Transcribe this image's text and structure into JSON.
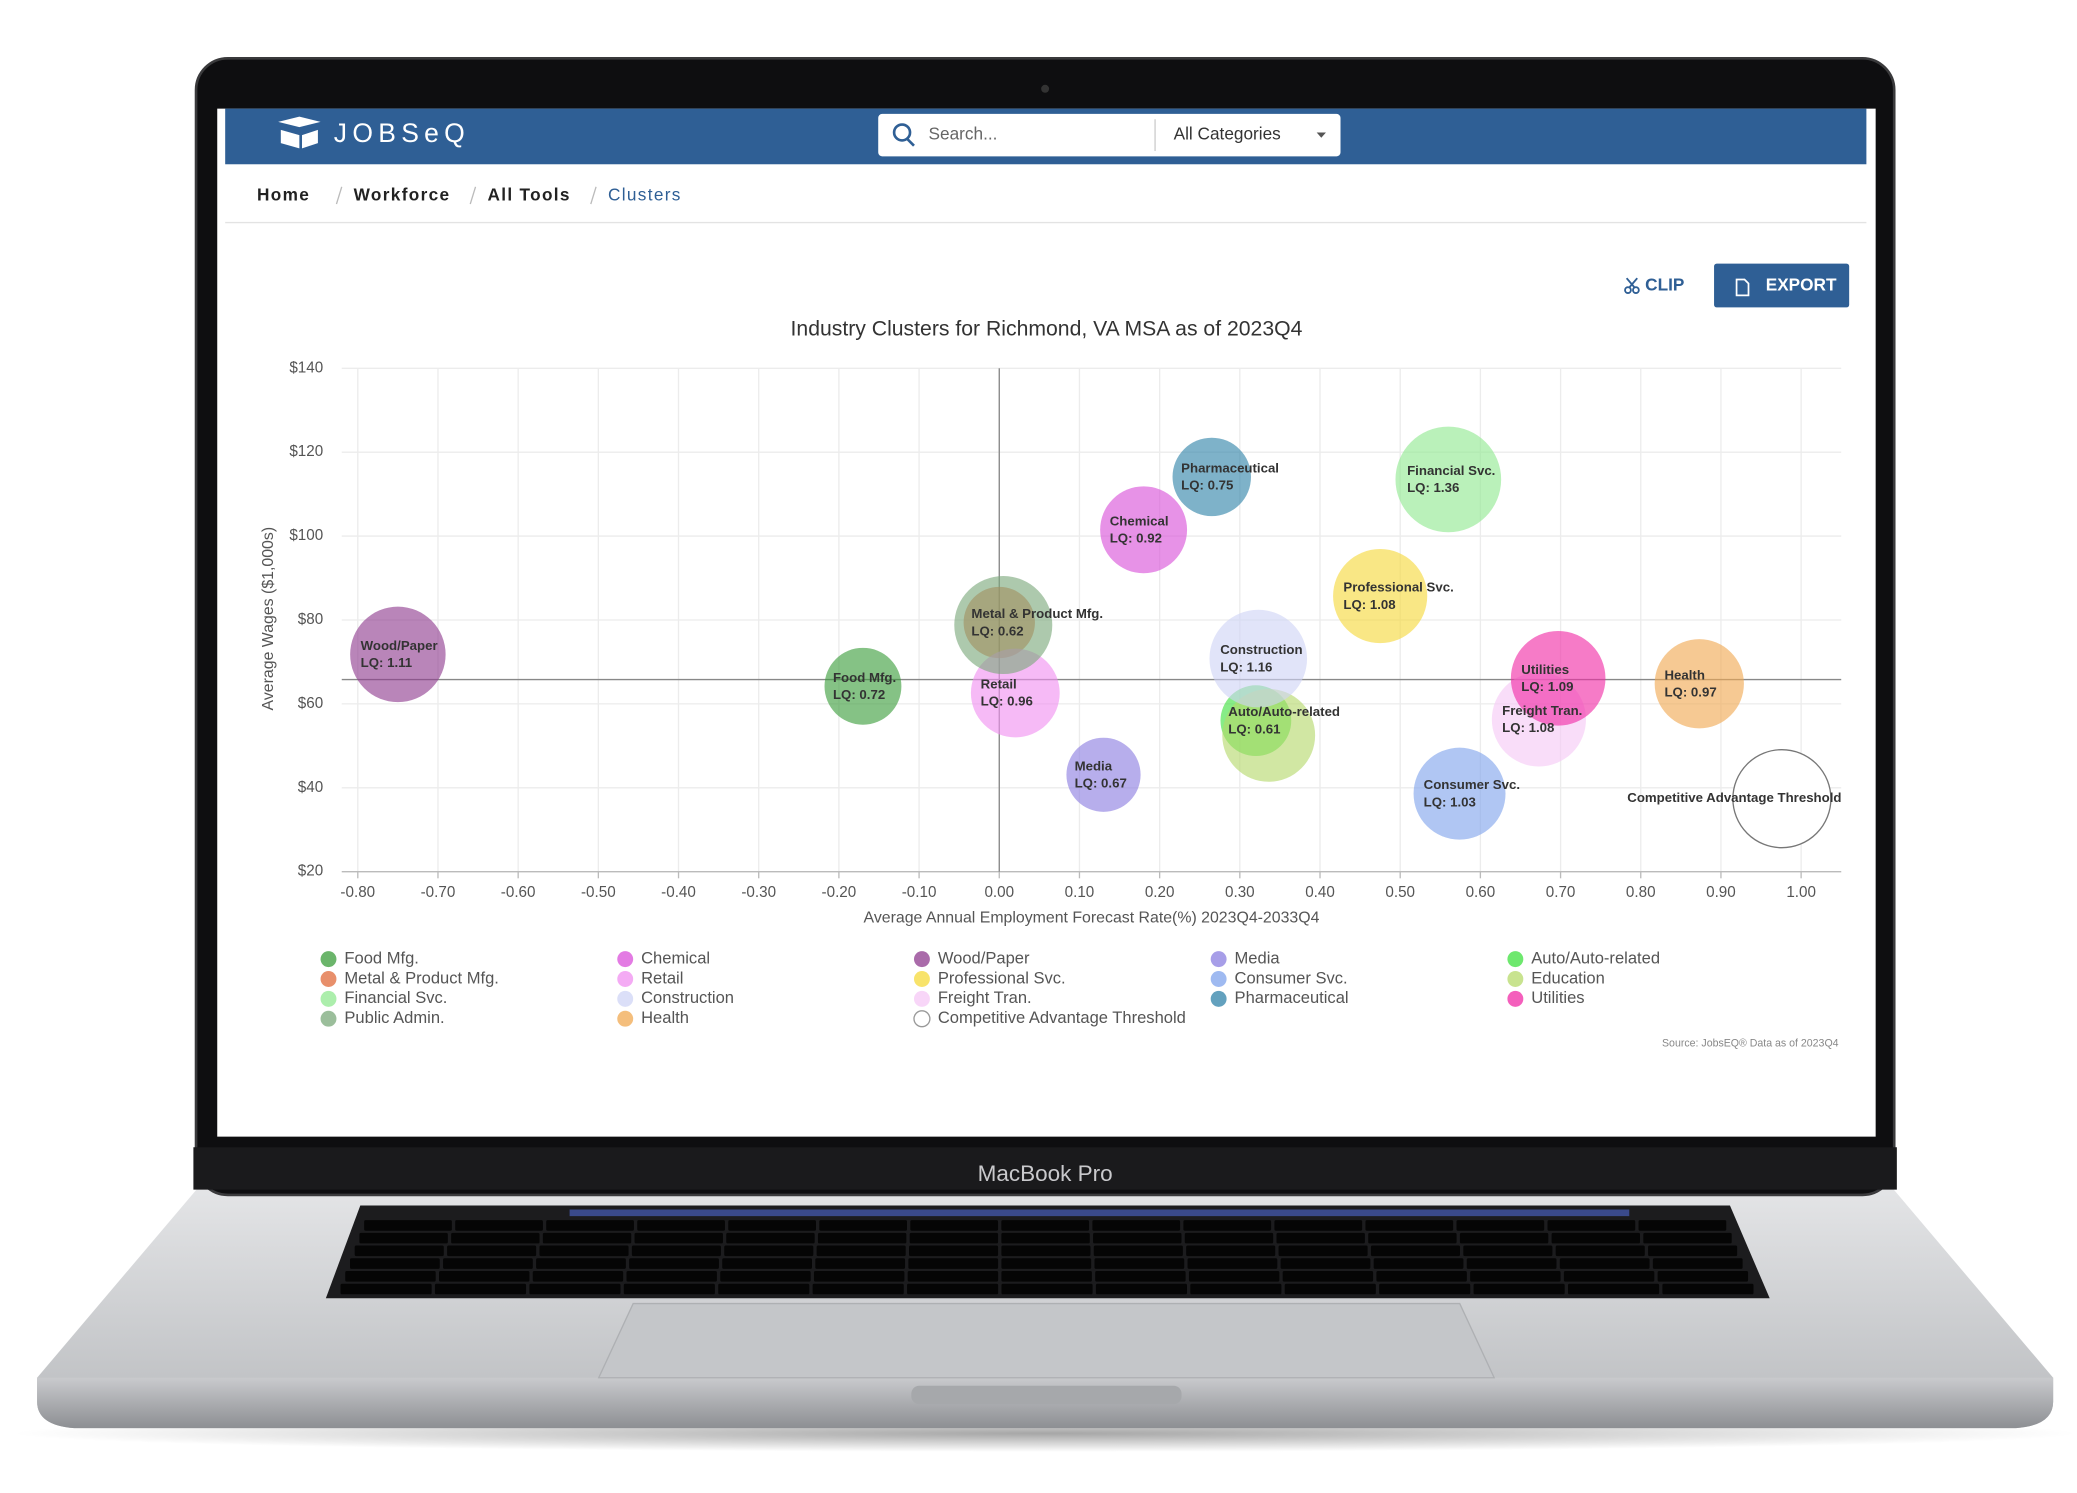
{
  "header": {
    "logo": "JOBSeQ",
    "search_placeholder": "Search...",
    "category_select": "All Categories"
  },
  "breadcrumbs": [
    "Home",
    "Workforce",
    "All Tools",
    "Clusters"
  ],
  "toolbar": {
    "clip": "CLIP",
    "export": "EXPORT"
  },
  "laptop_label": "MacBook Pro",
  "chart_data": {
    "type": "bubble",
    "title": "Industry Clusters for Richmond, VA MSA as of 2023Q4",
    "x_label": "Average Annual Employment Forecast Rate(%) 2023Q4-2033Q4",
    "y_label": "Average Wages ($1,000s)",
    "source": "Source: JobsEQ® Data as of 2023Q4",
    "xlim": [
      -0.82,
      1.05
    ],
    "ylim": [
      20,
      140
    ],
    "xticks": [
      {
        "value": -0.8,
        "label": "-0.80"
      },
      {
        "value": -0.7,
        "label": "-0.70"
      },
      {
        "value": -0.6,
        "label": "-0.60"
      },
      {
        "value": -0.5,
        "label": "-0.50"
      },
      {
        "value": -0.4,
        "label": "-0.40"
      },
      {
        "value": -0.3,
        "label": "-0.30"
      },
      {
        "value": -0.2,
        "label": "-0.20"
      },
      {
        "value": -0.1,
        "label": "-0.10"
      },
      {
        "value": 0,
        "label": "0.00"
      },
      {
        "value": 0.1,
        "label": "0.10"
      },
      {
        "value": 0.2,
        "label": "0.20"
      },
      {
        "value": 0.3,
        "label": "0.30"
      },
      {
        "value": 0.4,
        "label": "0.40"
      },
      {
        "value": 0.5,
        "label": "0.50"
      },
      {
        "value": 0.6,
        "label": "0.60"
      },
      {
        "value": 0.7,
        "label": "0.70"
      },
      {
        "value": 0.8,
        "label": "0.80"
      },
      {
        "value": 0.9,
        "label": "0.90"
      },
      {
        "value": 1,
        "label": "1.00"
      }
    ],
    "yticks": [
      {
        "value": 20,
        "label": "$20"
      },
      {
        "value": 40,
        "label": "$40"
      },
      {
        "value": 60,
        "label": "$60"
      },
      {
        "value": 80,
        "label": "$80"
      },
      {
        "value": 100,
        "label": "$100"
      },
      {
        "value": 120,
        "label": "$120"
      },
      {
        "value": 140,
        "label": "$140"
      }
    ],
    "grid": true,
    "reference_lines": [
      {
        "axis": "x",
        "value": 0
      },
      {
        "axis": "y",
        "value": 65.8
      }
    ],
    "series": [
      {
        "name": "Food Mfg.",
        "color": "#3a9c3a",
        "x": [
          -0.17
        ],
        "values": [
          64.2
        ],
        "sizes": [
          0.72
        ],
        "size_labels": [
          "LQ: 0.72"
        ]
      },
      {
        "name": "Chemical",
        "color": "#d94fd9",
        "x": [
          0.18
        ],
        "values": [
          101.5
        ],
        "sizes": [
          0.92
        ],
        "size_labels": [
          "LQ: 0.92"
        ]
      },
      {
        "name": "Wood/Paper",
        "color": "#8e3a8e",
        "x": [
          -0.75
        ],
        "values": [
          71.8
        ],
        "sizes": [
          1.11
        ],
        "size_labels": [
          "LQ: 1.11"
        ]
      },
      {
        "name": "Media",
        "color": "#8a7de0",
        "x": [
          0.13
        ],
        "values": [
          43.1
        ],
        "sizes": [
          0.67
        ],
        "size_labels": [
          "LQ: 0.67"
        ]
      },
      {
        "name": "Auto/Auto-related",
        "color": "#3ee03e",
        "x": [
          0.32
        ],
        "values": [
          56.0
        ],
        "sizes": [
          0.61
        ],
        "size_labels": [
          "LQ: 0.61"
        ]
      },
      {
        "name": "Metal & Product Mfg.",
        "color": "#e06a3a",
        "x": [
          0.0
        ],
        "values": [
          79.4
        ],
        "sizes": [
          0.62
        ],
        "size_labels": [
          "LQ: 0.62"
        ]
      },
      {
        "name": "Retail",
        "color": "#f08ff0",
        "x": [
          0.02
        ],
        "values": [
          62.6
        ],
        "sizes": [
          0.96
        ],
        "size_labels": [
          "LQ: 0.96"
        ]
      },
      {
        "name": "Professional Svc.",
        "color": "#f5d93a",
        "x": [
          0.475
        ],
        "values": [
          85.7
        ],
        "sizes": [
          1.08
        ],
        "size_labels": [
          "LQ: 1.08"
        ]
      },
      {
        "name": "Consumer Svc.",
        "color": "#7fa3ec",
        "x": [
          0.574
        ],
        "values": [
          38.6
        ],
        "sizes": [
          1.03
        ],
        "size_labels": [
          "LQ: 1.03"
        ]
      },
      {
        "name": "Education",
        "color": "#b5d96a",
        "x": [
          0.336
        ],
        "values": [
          52.5
        ],
        "sizes": [
          1.05
        ]
      },
      {
        "name": "Financial Svc.",
        "color": "#90e890",
        "x": [
          0.56
        ],
        "values": [
          113.5
        ],
        "sizes": [
          1.36
        ],
        "size_labels": [
          "LQ: 1.36"
        ]
      },
      {
        "name": "Construction",
        "color": "#cfd4f5",
        "x": [
          0.323
        ],
        "values": [
          70.8
        ],
        "sizes": [
          1.16
        ],
        "size_labels": [
          "LQ: 1.16"
        ]
      },
      {
        "name": "Freight Tran.",
        "color": "#f5c8f5",
        "x": [
          0.673
        ],
        "values": [
          56.3
        ],
        "sizes": [
          1.08
        ],
        "size_labels": [
          "LQ: 1.08"
        ]
      },
      {
        "name": "Pharmaceutical",
        "color": "#2f82a8",
        "x": [
          0.265
        ],
        "values": [
          114.1
        ],
        "sizes": [
          0.75
        ],
        "size_labels": [
          "LQ: 0.75"
        ]
      },
      {
        "name": "Utilities",
        "color": "#f02aa5",
        "x": [
          0.697
        ],
        "values": [
          66.1
        ],
        "sizes": [
          1.09
        ],
        "size_labels": [
          "LQ: 1.09"
        ]
      },
      {
        "name": "Public Admin.",
        "color": "#7aa87a",
        "x": [
          0.005
        ],
        "values": [
          78.8
        ],
        "sizes": [
          1.17
        ]
      },
      {
        "name": "Health",
        "color": "#f0a850",
        "x": [
          0.873
        ],
        "values": [
          64.8
        ],
        "sizes": [
          0.97
        ],
        "size_labels": [
          "LQ: 0.97"
        ]
      },
      {
        "name": "Competitive Advantage Threshold",
        "color": "#ffffff",
        "x": [
          0.976
        ],
        "values": [
          37.4
        ],
        "sizes": [
          1.17
        ]
      }
    ]
  }
}
